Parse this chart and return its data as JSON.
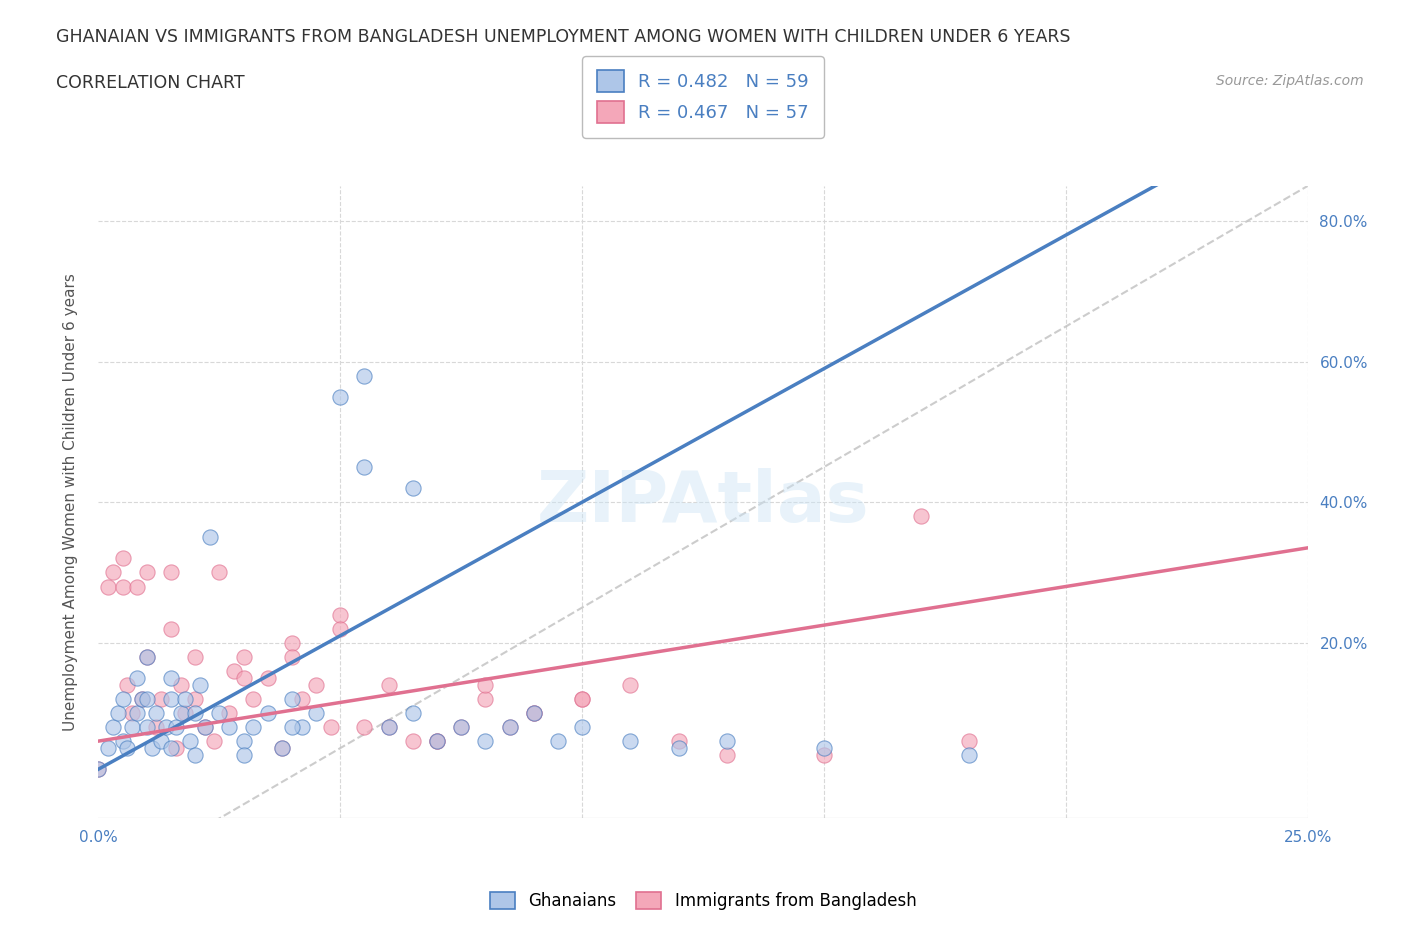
{
  "title_line1": "GHANAIAN VS IMMIGRANTS FROM BANGLADESH UNEMPLOYMENT AMONG WOMEN WITH CHILDREN UNDER 6 YEARS",
  "title_line2": "CORRELATION CHART",
  "source": "Source: ZipAtlas.com",
  "ylabel_label": "Unemployment Among Women with Children Under 6 years",
  "xmin": 0.0,
  "xmax": 0.25,
  "ymin": -0.05,
  "ymax": 0.85,
  "x_ticks": [
    0.0,
    0.05,
    0.1,
    0.15,
    0.2,
    0.25
  ],
  "x_tick_labels": [
    "0.0%",
    "",
    "",
    "",
    "",
    "25.0%"
  ],
  "y_ticks": [
    0.0,
    0.2,
    0.4,
    0.6,
    0.8
  ],
  "y_tick_labels": [
    "",
    "20.0%",
    "40.0%",
    "60.0%",
    "80.0%"
  ],
  "ghanaian_color": "#aec6e8",
  "bangladesh_color": "#f4a7b9",
  "ghanaian_line_color": "#4a7fc1",
  "bangladesh_line_color": "#e07090",
  "trend_line_color": "#c0c0c0",
  "watermark": "ZIPAtlas",
  "ghanaian_scatter_x": [
    0.0,
    0.002,
    0.003,
    0.004,
    0.005,
    0.005,
    0.006,
    0.007,
    0.008,
    0.008,
    0.009,
    0.01,
    0.01,
    0.01,
    0.011,
    0.012,
    0.013,
    0.014,
    0.015,
    0.015,
    0.016,
    0.017,
    0.018,
    0.019,
    0.02,
    0.021,
    0.022,
    0.023,
    0.025,
    0.027,
    0.03,
    0.032,
    0.035,
    0.038,
    0.04,
    0.042,
    0.045,
    0.05,
    0.055,
    0.06,
    0.065,
    0.07,
    0.075,
    0.08,
    0.085,
    0.09,
    0.095,
    0.1,
    0.11,
    0.12,
    0.13,
    0.15,
    0.18,
    0.055,
    0.065,
    0.04,
    0.03,
    0.02,
    0.015
  ],
  "ghanaian_scatter_y": [
    0.02,
    0.05,
    0.08,
    0.1,
    0.06,
    0.12,
    0.05,
    0.08,
    0.1,
    0.15,
    0.12,
    0.08,
    0.12,
    0.18,
    0.05,
    0.1,
    0.06,
    0.08,
    0.12,
    0.15,
    0.08,
    0.1,
    0.12,
    0.06,
    0.1,
    0.14,
    0.08,
    0.35,
    0.1,
    0.08,
    0.06,
    0.08,
    0.1,
    0.05,
    0.12,
    0.08,
    0.1,
    0.55,
    0.58,
    0.08,
    0.1,
    0.06,
    0.08,
    0.06,
    0.08,
    0.1,
    0.06,
    0.08,
    0.06,
    0.05,
    0.06,
    0.05,
    0.04,
    0.45,
    0.42,
    0.08,
    0.04,
    0.04,
    0.05
  ],
  "bangladesh_scatter_x": [
    0.0,
    0.002,
    0.003,
    0.005,
    0.005,
    0.006,
    0.007,
    0.008,
    0.009,
    0.01,
    0.01,
    0.012,
    0.013,
    0.015,
    0.015,
    0.016,
    0.017,
    0.018,
    0.02,
    0.02,
    0.022,
    0.024,
    0.025,
    0.027,
    0.028,
    0.03,
    0.032,
    0.035,
    0.038,
    0.04,
    0.042,
    0.045,
    0.048,
    0.05,
    0.055,
    0.06,
    0.065,
    0.07,
    0.075,
    0.08,
    0.085,
    0.09,
    0.1,
    0.11,
    0.12,
    0.13,
    0.15,
    0.17,
    0.18,
    0.03,
    0.04,
    0.05,
    0.06,
    0.07,
    0.08,
    0.09,
    0.1
  ],
  "bangladesh_scatter_y": [
    0.02,
    0.28,
    0.3,
    0.28,
    0.32,
    0.14,
    0.1,
    0.28,
    0.12,
    0.18,
    0.3,
    0.08,
    0.12,
    0.22,
    0.3,
    0.05,
    0.14,
    0.1,
    0.12,
    0.18,
    0.08,
    0.06,
    0.3,
    0.1,
    0.16,
    0.18,
    0.12,
    0.15,
    0.05,
    0.2,
    0.12,
    0.14,
    0.08,
    0.24,
    0.08,
    0.14,
    0.06,
    0.06,
    0.08,
    0.12,
    0.08,
    0.1,
    0.12,
    0.14,
    0.06,
    0.04,
    0.04,
    0.38,
    0.06,
    0.15,
    0.18,
    0.22,
    0.08,
    0.06,
    0.14,
    0.1,
    0.12
  ],
  "ghanaian_size": 120,
  "bangladesh_size": 120,
  "background_color": "#ffffff",
  "plot_bg_color": "#ffffff",
  "grid_color": "#d8d8d8",
  "grid_style": "--"
}
